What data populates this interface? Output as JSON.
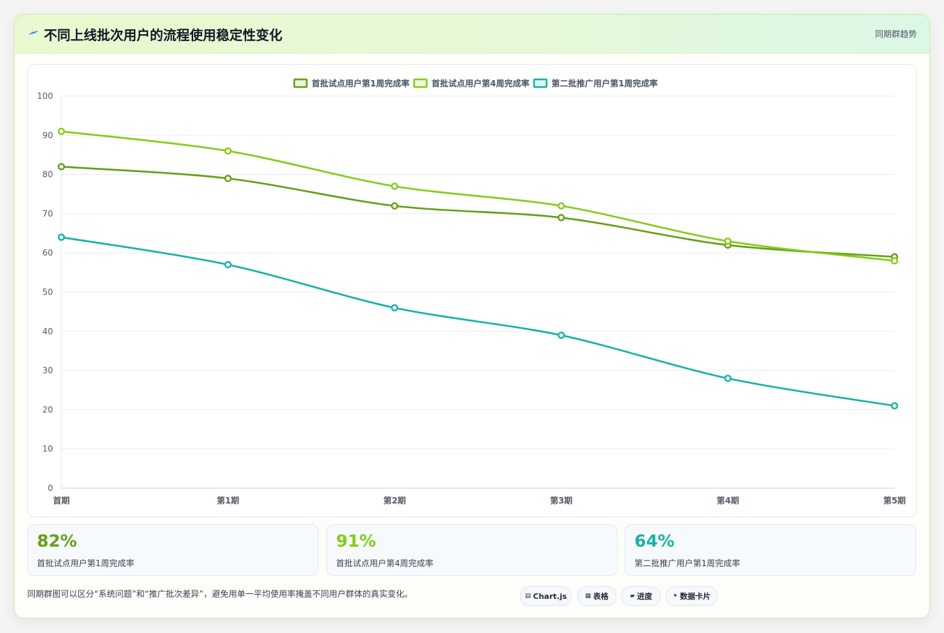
{
  "header": {
    "title": "不同上线批次用户的流程使用稳定性变化",
    "badge": "同期群趋势",
    "icon": "lightning-icon"
  },
  "chart_data": {
    "type": "line",
    "categories": [
      "首期",
      "第1期",
      "第2期",
      "第3期",
      "第4期",
      "第5期"
    ],
    "series": [
      {
        "name": "首批试点用户第1周完成率",
        "color": "#64a015",
        "values": [
          82,
          79,
          72,
          69,
          62,
          59
        ]
      },
      {
        "name": "首批试点用户第4周完成率",
        "color": "#84cc16",
        "values": [
          91,
          86,
          77,
          72,
          63,
          58
        ]
      },
      {
        "name": "第二批推广用户第1周完成率",
        "color": "#14b3a6",
        "values": [
          64,
          57,
          46,
          39,
          28,
          21
        ]
      }
    ],
    "ylim": [
      0,
      100
    ],
    "yticks": [
      0,
      10,
      20,
      30,
      40,
      50,
      60,
      70,
      80,
      90,
      100
    ],
    "grid": true,
    "legend": "top-center",
    "title": "",
    "xlabel": "",
    "ylabel": ""
  },
  "stats": [
    {
      "value": "82%",
      "label": "首批试点用户第1周完成率",
      "color": "#64a015"
    },
    {
      "value": "91%",
      "label": "首批试点用户第4周完成率",
      "color": "#84cc16"
    },
    {
      "value": "64%",
      "label": "第二批推广用户第1周完成率",
      "color": "#14b3a6"
    }
  ],
  "footer": {
    "note": "同期群图可以区分“系统问题”和“推广批次差异”，避免用单一平均使用率掩盖不同用户群体的真实变化。",
    "tags": [
      {
        "label": "Chart.js",
        "icon": "chart-icon"
      },
      {
        "label": "表格",
        "icon": "table-icon"
      },
      {
        "label": "进度",
        "icon": "progress-icon"
      },
      {
        "label": "数据卡片",
        "icon": "card-icon"
      }
    ]
  }
}
